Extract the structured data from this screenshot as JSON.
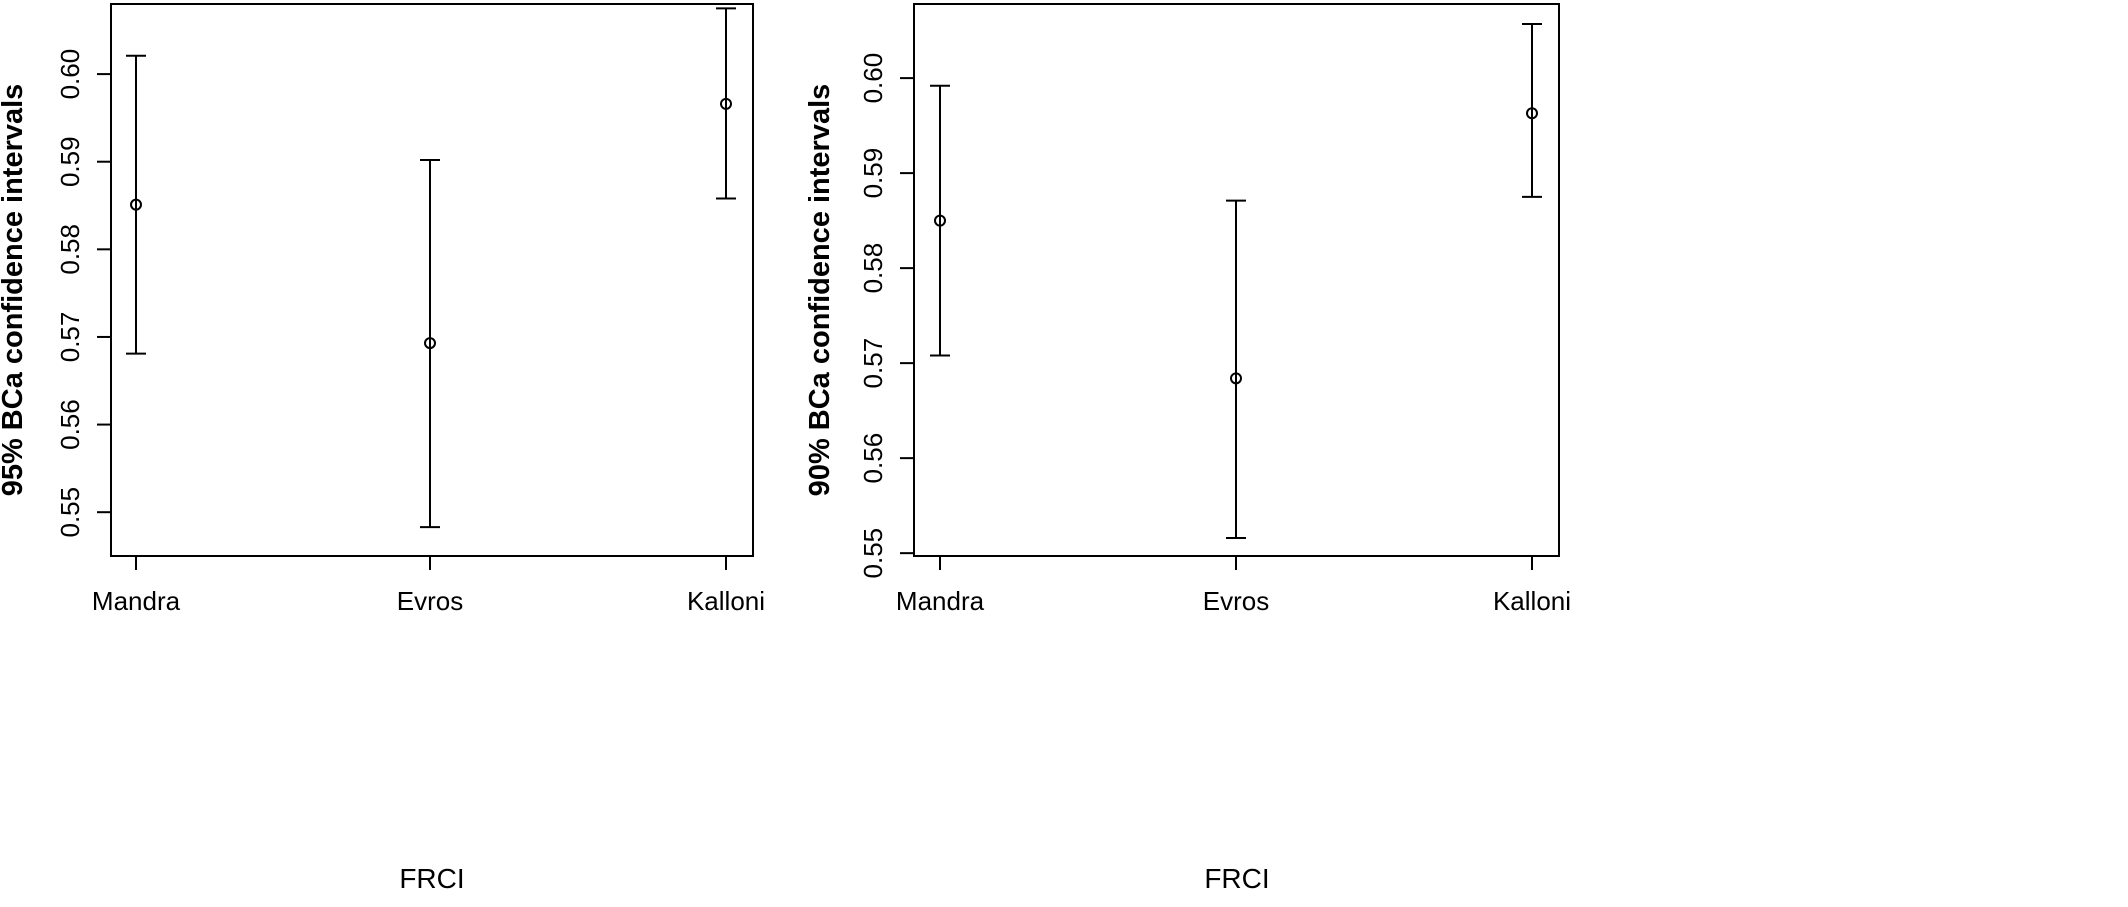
{
  "chart_data": [
    {
      "type": "errorbar",
      "xlabel": "FRCI",
      "ylabel": "95% BCa confidence intervals",
      "ylim": [
        0.545,
        0.608
      ],
      "yticks": [
        "0.55",
        "0.56",
        "0.57",
        "0.58",
        "0.59",
        "0.60"
      ],
      "ytick_values": [
        0.55,
        0.56,
        0.57,
        0.58,
        0.59,
        0.6
      ],
      "categories": [
        "Mandra",
        "Evros",
        "Kalloni"
      ],
      "estimates": [
        0.5851,
        0.5693,
        0.5966
      ],
      "lower": [
        0.5681,
        0.5483,
        0.5858
      ],
      "upper": [
        0.6021,
        0.5902,
        0.6075
      ],
      "grid": false
    },
    {
      "type": "errorbar",
      "xlabel": "FRCI",
      "ylabel": "90% BCa confidence intervals",
      "ylim": [
        0.5497,
        0.6078
      ],
      "yticks": [
        "0.55",
        "0.56",
        "0.57",
        "0.58",
        "0.59",
        "0.60"
      ],
      "ytick_values": [
        0.55,
        0.56,
        0.57,
        0.58,
        0.59,
        0.6
      ],
      "categories": [
        "Mandra",
        "Evros",
        "Kalloni"
      ],
      "estimates": [
        0.585,
        0.5684,
        0.5963
      ],
      "lower": [
        0.5708,
        0.5516,
        0.5875
      ],
      "upper": [
        0.5992,
        0.5871,
        0.6057
      ],
      "grid": false
    }
  ]
}
